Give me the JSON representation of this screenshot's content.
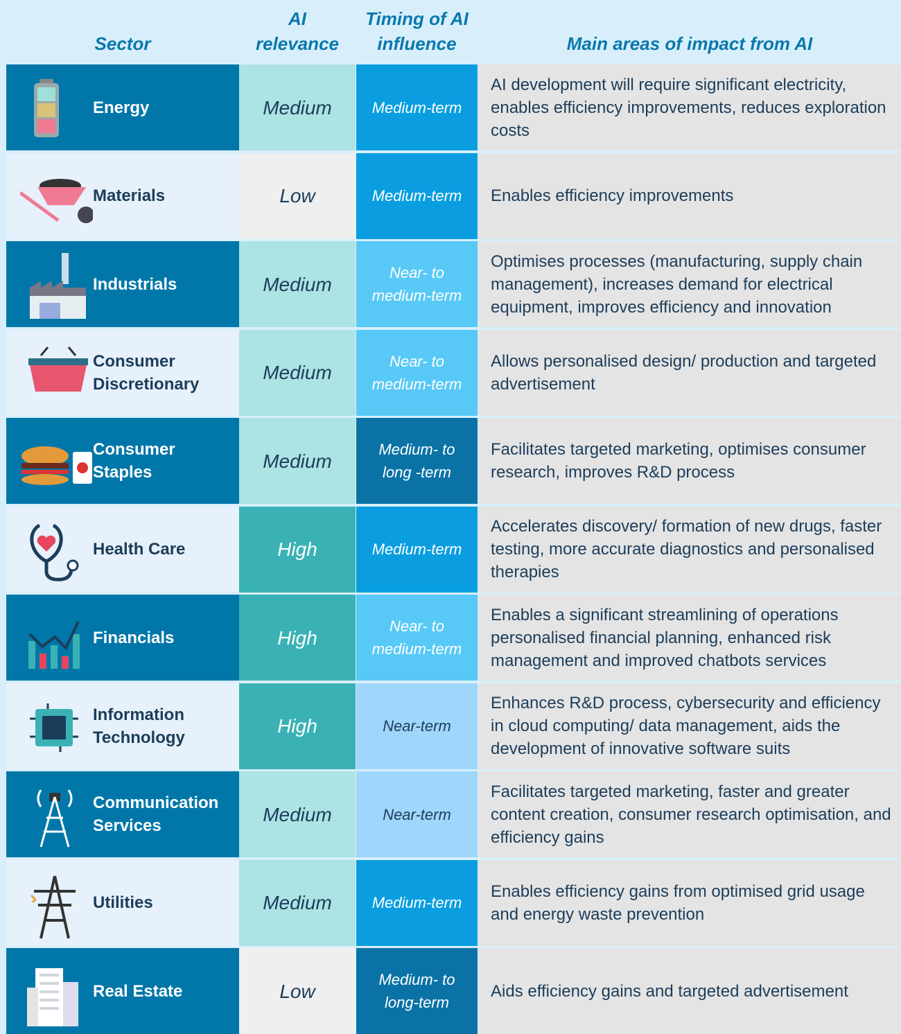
{
  "header": [
    "Sector",
    "AI relevance",
    "Timing of AI influence",
    "Main areas of impact from AI"
  ],
  "rows": [
    {
      "sector": "Energy",
      "relevance": "Medium",
      "timing": "Medium-term",
      "impact": "AI development will require significant electricity, enables efficiency improvements, reduces exploration costs",
      "sector_color": "#0077a8",
      "relevance_color": "#ace3e3",
      "timing_color": "#0a9ee0"
    },
    {
      "sector": "Materials",
      "relevance": "Low",
      "timing": "Medium-term",
      "impact": "Enables efficiency improvements",
      "sector_color": "#e6f1fb",
      "relevance_color": "#efefef",
      "timing_color": "#0a9ee0"
    },
    {
      "sector": "Industrials",
      "relevance": "Medium",
      "timing": "Near- to medium-term",
      "impact": "Optimises processes (manufacturing, supply chain management), increases demand for electrical equipment, improves efficiency and innovation",
      "sector_color": "#0077a8",
      "relevance_color": "#ace3e3",
      "timing_color": "#58c9f6"
    },
    {
      "sector": "Consumer Discretionary",
      "relevance": "Medium",
      "timing": "Near- to medium-term",
      "impact": "Allows personalised design/ production and targeted advertisement",
      "sector_color": "#e6f1fb",
      "relevance_color": "#ace3e3",
      "timing_color": "#58c9f6"
    },
    {
      "sector": "Consumer Staples",
      "relevance": "Medium",
      "timing": "Medium- to long -term",
      "impact": "Facilitates targeted marketing, optimises consumer research, improves R&D process",
      "sector_color": "#0077a8",
      "relevance_color": "#ace3e3",
      "timing_color": "#0b72a6"
    },
    {
      "sector": "Health Care",
      "relevance": "High",
      "timing": "Medium-term",
      "impact": "Accelerates discovery/ formation of new drugs, faster testing, more accurate diagnostics and personalised therapies",
      "sector_color": "#e6f1fb",
      "relevance_color": "#3ab2b5",
      "timing_color": "#0a9ee0"
    },
    {
      "sector": "Financials",
      "relevance": "High",
      "timing": "Near- to medium-term",
      "impact": "Enables a significant streamlining of operations personalised financial planning, enhanced risk management and improved chatbots services",
      "sector_color": "#0077a8",
      "relevance_color": "#3ab2b5",
      "timing_color": "#58c9f6"
    },
    {
      "sector": "Information Technology",
      "relevance": "High",
      "timing": "Near-term",
      "impact": "Enhances R&D process, cybersecurity and efficiency in cloud computing/ data management, aids the development of innovative software suits",
      "sector_color": "#e6f1fb",
      "relevance_color": "#3ab2b5",
      "timing_color": "#9fd6fb"
    },
    {
      "sector": "Communication Services",
      "relevance": "Medium",
      "timing": "Near-term",
      "impact": "Facilitates targeted marketing, faster and greater content creation, consumer research optimisation, and efficiency gains",
      "sector_color": "#0077a8",
      "relevance_color": "#ace3e3",
      "timing_color": "#9fd6fb"
    },
    {
      "sector": "Utilities",
      "relevance": "Medium",
      "timing": "Medium-term",
      "impact": "Enables efficiency gains from optimised grid usage and energy waste prevention",
      "sector_color": "#e6f1fb",
      "relevance_color": "#ace3e3",
      "timing_color": "#0a9ee0"
    },
    {
      "sector": "Real Estate",
      "relevance": "Low",
      "timing": "Medium- to long-term",
      "impact": "Aids efficiency gains and targeted advertisement",
      "sector_color": "#0077a8",
      "relevance_color": "#efefef",
      "timing_color": "#0b72a6"
    }
  ]
}
